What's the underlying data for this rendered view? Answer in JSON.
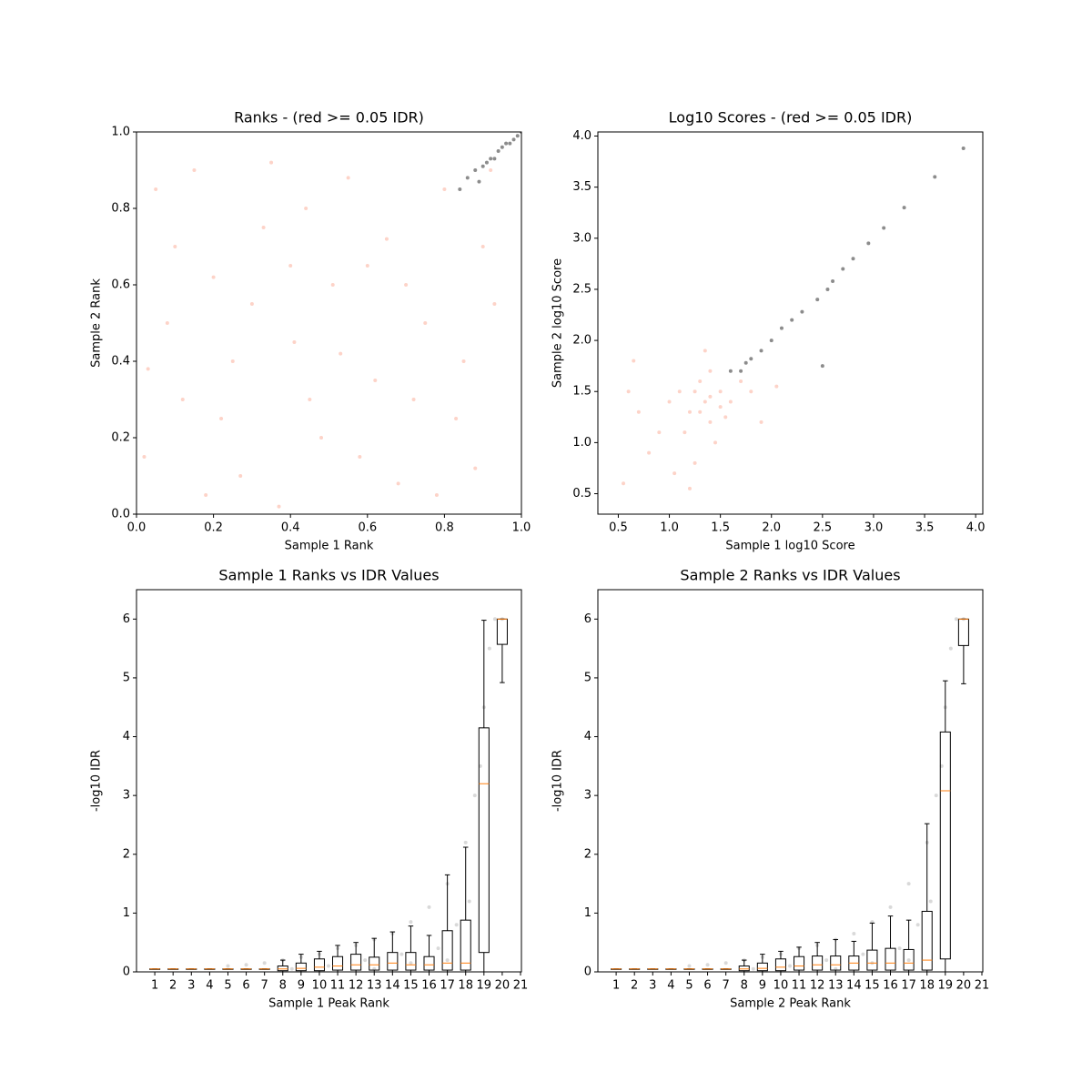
{
  "chart_data": [
    {
      "type": "scatter",
      "title": "Ranks - (red >= 0.05 IDR)",
      "xlabel": "Sample 1 Rank",
      "ylabel": "Sample 2 Rank",
      "xlim": [
        0,
        1
      ],
      "ylim": [
        0,
        1
      ],
      "xticks": [
        {
          "value": 0,
          "label": "0.0"
        },
        0.2,
        0.4,
        0.6,
        0.8,
        {
          "value": 1,
          "label": "1.0"
        }
      ],
      "yticks": [
        {
          "value": 0,
          "label": "0.0"
        },
        0.2,
        0.4,
        0.6,
        0.8,
        {
          "value": 1,
          "label": "1.0"
        }
      ],
      "series": [
        {
          "color": "#fa8060",
          "x": [
            0.05,
            0.12,
            0.2,
            0.27,
            0.33,
            0.41,
            0.48,
            0.55,
            0.62,
            0.7,
            0.78,
            0.85,
            0.9,
            0.02,
            0.08,
            0.15,
            0.22,
            0.3,
            0.37,
            0.44,
            0.51,
            0.58,
            0.65,
            0.72,
            0.8,
            0.88,
            0.93,
            0.1,
            0.18,
            0.25,
            0.35,
            0.45,
            0.53,
            0.6,
            0.68,
            0.75,
            0.83,
            0.92,
            0.4,
            0.03
          ],
          "y": [
            0.85,
            0.3,
            0.62,
            0.1,
            0.75,
            0.45,
            0.2,
            0.88,
            0.35,
            0.6,
            0.05,
            0.4,
            0.7,
            0.15,
            0.5,
            0.9,
            0.25,
            0.55,
            0.02,
            0.8,
            0.6,
            0.15,
            0.72,
            0.3,
            0.85,
            0.12,
            0.55,
            0.7,
            0.05,
            0.4,
            0.92,
            0.3,
            0.42,
            0.65,
            0.08,
            0.5,
            0.25,
            0.9,
            0.65,
            0.38
          ]
        },
        {
          "color": "#000000",
          "x": [
            0.84,
            0.86,
            0.88,
            0.9,
            0.91,
            0.92,
            0.93,
            0.94,
            0.95,
            0.96,
            0.97,
            0.98,
            0.99,
            1.0,
            0.89
          ],
          "y": [
            0.85,
            0.88,
            0.9,
            0.91,
            0.92,
            0.93,
            0.93,
            0.95,
            0.96,
            0.97,
            0.97,
            0.98,
            0.99,
            1.0,
            0.87
          ]
        }
      ]
    },
    {
      "type": "scatter",
      "title": "Log10 Scores - (red >= 0.05 IDR)",
      "xlabel": "Sample 1 log10 Score",
      "ylabel": "Sample 2 log10 Score",
      "xlim": [
        0.3,
        4.07
      ],
      "ylim": [
        0.3,
        4.04
      ],
      "xticks": [
        0.5,
        {
          "value": 1,
          "label": "1.0"
        },
        1.5,
        {
          "value": 2,
          "label": "2.0"
        },
        2.5,
        {
          "value": 3,
          "label": "3.0"
        },
        3.5,
        {
          "value": 4,
          "label": "4.0"
        }
      ],
      "yticks": [
        0.5,
        {
          "value": 1,
          "label": "1.0"
        },
        1.5,
        {
          "value": 2,
          "label": "2.0"
        },
        2.5,
        {
          "value": 3,
          "label": "3.0"
        },
        3.5,
        {
          "value": 4,
          "label": "4.0"
        }
      ],
      "series": [
        {
          "color": "#fa8060",
          "x": [
            1.35,
            1.2,
            1.5,
            1.4,
            1.1,
            1.6,
            1.3,
            0.9,
            1.0,
            1.45,
            1.7,
            0.7,
            0.8,
            1.25,
            1.55,
            1.15,
            1.4,
            1.8,
            0.6,
            1.05,
            1.3,
            1.4,
            1.5,
            1.25,
            0.55,
            1.2,
            2.05,
            1.9,
            0.65,
            1.35
          ],
          "y": [
            1.4,
            1.3,
            1.5,
            1.2,
            1.5,
            1.4,
            1.6,
            1.1,
            1.4,
            1.0,
            1.6,
            1.3,
            0.9,
            0.8,
            1.25,
            1.1,
            1.7,
            1.5,
            1.5,
            0.7,
            1.3,
            1.45,
            1.35,
            1.5,
            0.6,
            0.55,
            1.55,
            1.2,
            1.8,
            1.9
          ]
        },
        {
          "color": "#000000",
          "x": [
            1.7,
            1.75,
            1.8,
            1.9,
            2.0,
            2.1,
            2.2,
            2.3,
            2.45,
            2.55,
            2.6,
            2.7,
            2.8,
            2.95,
            3.1,
            3.3,
            3.6,
            3.88,
            1.6,
            2.5
          ],
          "y": [
            1.7,
            1.78,
            1.82,
            1.9,
            2.0,
            2.12,
            2.2,
            2.28,
            2.4,
            2.5,
            2.58,
            2.7,
            2.8,
            2.95,
            3.1,
            3.3,
            3.6,
            3.88,
            1.7,
            1.75
          ]
        }
      ]
    },
    {
      "type": "box",
      "title": "Sample 1 Ranks vs IDR Values",
      "xlabel": "Sample 1 Peak Rank",
      "ylabel": "-log10 IDR",
      "xlim": [
        0,
        21.05
      ],
      "ylim": [
        0,
        6.5
      ],
      "xticks": [
        1,
        2,
        3,
        4,
        5,
        6,
        7,
        8,
        9,
        10,
        11,
        12,
        13,
        14,
        15,
        16,
        17,
        18,
        19,
        20,
        21
      ],
      "yticks": [
        0,
        1,
        2,
        3,
        4,
        5,
        6
      ],
      "points": {
        "color": "#000000",
        "x": [
          5,
          6,
          7,
          8,
          9,
          10,
          11,
          12,
          13,
          14,
          15,
          16,
          17,
          18,
          18.5,
          19,
          19.3,
          19.6,
          20,
          8.5,
          10.5,
          12.5,
          14.5,
          16.5,
          17.5,
          18.2,
          13,
          15,
          17,
          18.8
        ],
        "y": [
          0.1,
          0.12,
          0.15,
          0.2,
          0.25,
          0.3,
          0.4,
          0.45,
          0.55,
          0.65,
          0.85,
          1.1,
          1.5,
          2.2,
          3,
          4.5,
          5.5,
          6,
          6,
          0.05,
          0.1,
          0.2,
          0.3,
          0.4,
          0.8,
          1.2,
          0.05,
          0.15,
          0.2,
          3.5
        ]
      },
      "boxes": [
        {
          "position": 1,
          "whislo": 0.05,
          "q1": 0.05,
          "med": 0.05,
          "q3": 0.05,
          "whishi": 0.05
        },
        {
          "position": 2,
          "whislo": 0.05,
          "q1": 0.05,
          "med": 0.05,
          "q3": 0.05,
          "whishi": 0.05
        },
        {
          "position": 3,
          "whislo": 0.05,
          "q1": 0.05,
          "med": 0.05,
          "q3": 0.05,
          "whishi": 0.05
        },
        {
          "position": 4,
          "whislo": 0.05,
          "q1": 0.05,
          "med": 0.05,
          "q3": 0.05,
          "whishi": 0.05
        },
        {
          "position": 5,
          "whislo": 0.05,
          "q1": 0.05,
          "med": 0.05,
          "q3": 0.05,
          "whishi": 0.05
        },
        {
          "position": 6,
          "whislo": 0.05,
          "q1": 0.05,
          "med": 0.05,
          "q3": 0.05,
          "whishi": 0.05
        },
        {
          "position": 7,
          "whislo": 0.05,
          "q1": 0.05,
          "med": 0.05,
          "q3": 0.05,
          "whishi": 0.05
        },
        {
          "position": 8,
          "whislo": 0,
          "q1": 0.02,
          "med": 0.05,
          "q3": 0.1,
          "whishi": 0.2
        },
        {
          "position": 9,
          "whislo": 0,
          "q1": 0.02,
          "med": 0.06,
          "q3": 0.15,
          "whishi": 0.3
        },
        {
          "position": 10,
          "whislo": 0,
          "q1": 0.02,
          "med": 0.08,
          "q3": 0.22,
          "whishi": 0.35
        },
        {
          "position": 11,
          "whislo": 0,
          "q1": 0.03,
          "med": 0.1,
          "q3": 0.26,
          "whishi": 0.45
        },
        {
          "position": 12,
          "whislo": 0,
          "q1": 0.03,
          "med": 0.12,
          "q3": 0.3,
          "whishi": 0.5
        },
        {
          "position": 13,
          "whislo": 0,
          "q1": 0.03,
          "med": 0.12,
          "q3": 0.25,
          "whishi": 0.57
        },
        {
          "position": 14,
          "whislo": 0,
          "q1": 0.03,
          "med": 0.15,
          "q3": 0.33,
          "whishi": 0.68
        },
        {
          "position": 15,
          "whislo": 0,
          "q1": 0.03,
          "med": 0.12,
          "q3": 0.33,
          "whishi": 0.78
        },
        {
          "position": 16,
          "whislo": 0,
          "q1": 0.03,
          "med": 0.12,
          "q3": 0.26,
          "whishi": 0.62
        },
        {
          "position": 17,
          "whislo": 0,
          "q1": 0.03,
          "med": 0.15,
          "q3": 0.7,
          "whishi": 1.65
        },
        {
          "position": 18,
          "whislo": 0,
          "q1": 0.03,
          "med": 0.15,
          "q3": 0.88,
          "whishi": 2.12
        },
        {
          "position": 19,
          "whislo": 0,
          "q1": 0.33,
          "med": 3.2,
          "q3": 4.15,
          "whishi": 5.98
        },
        {
          "position": 20,
          "whislo": 4.92,
          "q1": 5.57,
          "med": 6,
          "q3": 6,
          "whishi": 6
        }
      ]
    },
    {
      "type": "box",
      "title": "Sample 2 Ranks vs IDR Values",
      "xlabel": "Sample 2 Peak Rank",
      "ylabel": "-log10 IDR",
      "xlim": [
        0,
        21.05
      ],
      "ylim": [
        0,
        6.5
      ],
      "xticks": [
        1,
        2,
        3,
        4,
        5,
        6,
        7,
        8,
        9,
        10,
        11,
        12,
        13,
        14,
        15,
        16,
        17,
        18,
        19,
        20,
        21
      ],
      "yticks": [
        0,
        1,
        2,
        3,
        4,
        5,
        6
      ],
      "points": {
        "color": "#000000",
        "x": [
          5,
          6,
          7,
          8,
          9,
          10,
          11,
          12,
          13,
          14,
          15,
          16,
          17,
          18,
          18.5,
          19,
          19.3,
          19.6,
          20,
          8.5,
          10.5,
          12.5,
          14.5,
          16.5,
          17.5,
          18.2,
          13,
          15,
          17,
          18.8
        ],
        "y": [
          0.1,
          0.12,
          0.15,
          0.2,
          0.25,
          0.3,
          0.4,
          0.45,
          0.55,
          0.65,
          0.85,
          1.1,
          1.5,
          2.2,
          3,
          4.5,
          5.5,
          6,
          6,
          0.05,
          0.1,
          0.2,
          0.3,
          0.4,
          0.8,
          1.2,
          0.05,
          0.15,
          0.2,
          3.5
        ]
      },
      "boxes": [
        {
          "position": 1,
          "whislo": 0.05,
          "q1": 0.05,
          "med": 0.05,
          "q3": 0.05,
          "whishi": 0.05
        },
        {
          "position": 2,
          "whislo": 0.05,
          "q1": 0.05,
          "med": 0.05,
          "q3": 0.05,
          "whishi": 0.05
        },
        {
          "position": 3,
          "whislo": 0.05,
          "q1": 0.05,
          "med": 0.05,
          "q3": 0.05,
          "whishi": 0.05
        },
        {
          "position": 4,
          "whislo": 0.05,
          "q1": 0.05,
          "med": 0.05,
          "q3": 0.05,
          "whishi": 0.05
        },
        {
          "position": 5,
          "whislo": 0.05,
          "q1": 0.05,
          "med": 0.05,
          "q3": 0.05,
          "whishi": 0.05
        },
        {
          "position": 6,
          "whislo": 0.05,
          "q1": 0.05,
          "med": 0.05,
          "q3": 0.05,
          "whishi": 0.05
        },
        {
          "position": 7,
          "whislo": 0.05,
          "q1": 0.05,
          "med": 0.05,
          "q3": 0.05,
          "whishi": 0.05
        },
        {
          "position": 8,
          "whislo": 0,
          "q1": 0.02,
          "med": 0.05,
          "q3": 0.1,
          "whishi": 0.2
        },
        {
          "position": 9,
          "whislo": 0,
          "q1": 0.02,
          "med": 0.06,
          "q3": 0.15,
          "whishi": 0.3
        },
        {
          "position": 10,
          "whislo": 0,
          "q1": 0.02,
          "med": 0.08,
          "q3": 0.22,
          "whishi": 0.35
        },
        {
          "position": 11,
          "whislo": 0,
          "q1": 0.03,
          "med": 0.1,
          "q3": 0.26,
          "whishi": 0.42
        },
        {
          "position": 12,
          "whislo": 0,
          "q1": 0.03,
          "med": 0.12,
          "q3": 0.27,
          "whishi": 0.5
        },
        {
          "position": 13,
          "whislo": 0,
          "q1": 0.03,
          "med": 0.12,
          "q3": 0.27,
          "whishi": 0.55
        },
        {
          "position": 14,
          "whislo": 0,
          "q1": 0.03,
          "med": 0.15,
          "q3": 0.27,
          "whishi": 0.52
        },
        {
          "position": 15,
          "whislo": 0,
          "q1": 0.03,
          "med": 0.15,
          "q3": 0.37,
          "whishi": 0.83
        },
        {
          "position": 16,
          "whislo": 0,
          "q1": 0.03,
          "med": 0.15,
          "q3": 0.4,
          "whishi": 0.95
        },
        {
          "position": 17,
          "whislo": 0,
          "q1": 0.03,
          "med": 0.15,
          "q3": 0.38,
          "whishi": 0.88
        },
        {
          "position": 18,
          "whislo": 0,
          "q1": 0.03,
          "med": 0.2,
          "q3": 1.03,
          "whishi": 2.52
        },
        {
          "position": 19,
          "whislo": 0,
          "q1": 0.22,
          "med": 3.08,
          "q3": 4.08,
          "whishi": 4.95
        },
        {
          "position": 20,
          "whislo": 4.9,
          "q1": 5.55,
          "med": 6,
          "q3": 6,
          "whishi": 6
        }
      ]
    }
  ]
}
